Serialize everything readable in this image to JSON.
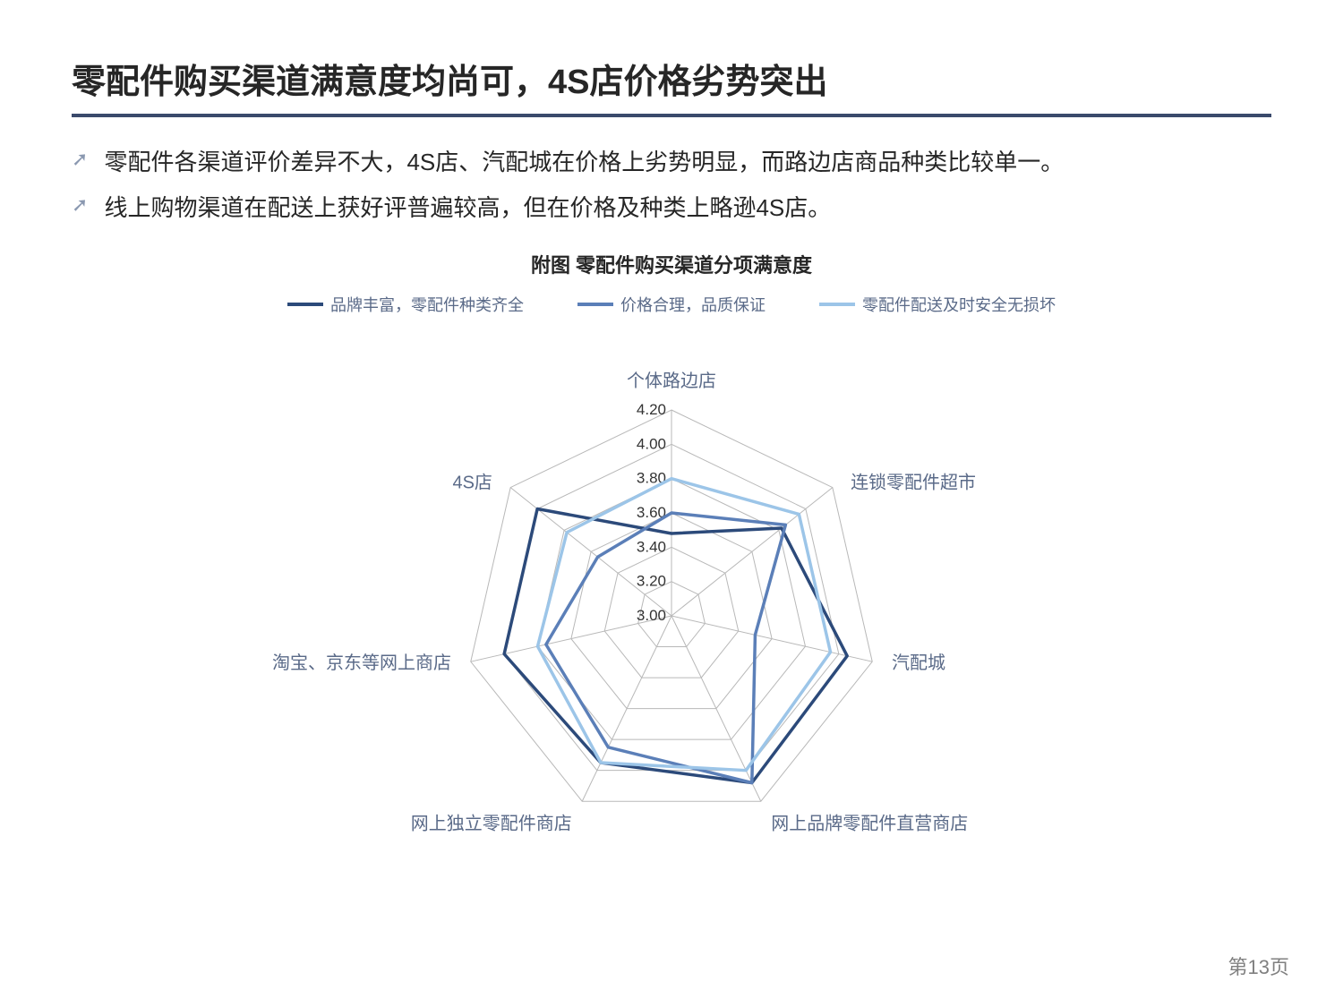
{
  "title": "零配件购买渠道满意度均尚可，4S店价格劣势突出",
  "bullets": [
    "零配件各渠道评价差异不大，4S店、汽配城在价格上劣势明显，而路边店商品种类比较单一。",
    "线上购物渠道在配送上获好评普遍较高，但在价格及种类上略逊4S店。"
  ],
  "chart": {
    "title": "附图  零配件购买渠道分项满意度",
    "type": "radar",
    "axes": [
      "个体路边店",
      "连锁零配件超市",
      "汽配城",
      "网上品牌零配件直营商店",
      "网上独立零配件商店",
      "淘宝、京东等网上商店",
      "4S店"
    ],
    "r_min": 3.0,
    "r_max": 4.2,
    "ticks": [
      3.0,
      3.2,
      3.4,
      3.6,
      3.8,
      4.0,
      4.2
    ],
    "grid_color": "#b8b8b8",
    "background_color": "#ffffff",
    "series": [
      {
        "name": "品牌丰富，零配件种类齐全",
        "color": "#2c4a7a",
        "stroke_width": 3.5,
        "values": [
          3.48,
          3.82,
          4.05,
          4.08,
          3.95,
          4.0,
          4.0
        ]
      },
      {
        "name": "价格合理，品质保证",
        "color": "#5b7fb8",
        "stroke_width": 3.5,
        "values": [
          3.6,
          3.85,
          3.5,
          4.08,
          3.85,
          3.75,
          3.55
        ]
      },
      {
        "name": "零配件配送及时安全无损坏",
        "color": "#9cc5e8",
        "stroke_width": 3.5,
        "values": [
          3.8,
          3.95,
          3.95,
          4.0,
          3.95,
          3.8,
          3.78
        ]
      }
    ],
    "label_fontsize": 20,
    "tick_fontsize": 17,
    "legend_fontsize": 18
  },
  "page_number": "第13页",
  "colors": {
    "title_underline": "#3a4a6b",
    "bullet_icon": "#8a98b0",
    "text": "#262626",
    "axis_text": "#5a6a88"
  }
}
